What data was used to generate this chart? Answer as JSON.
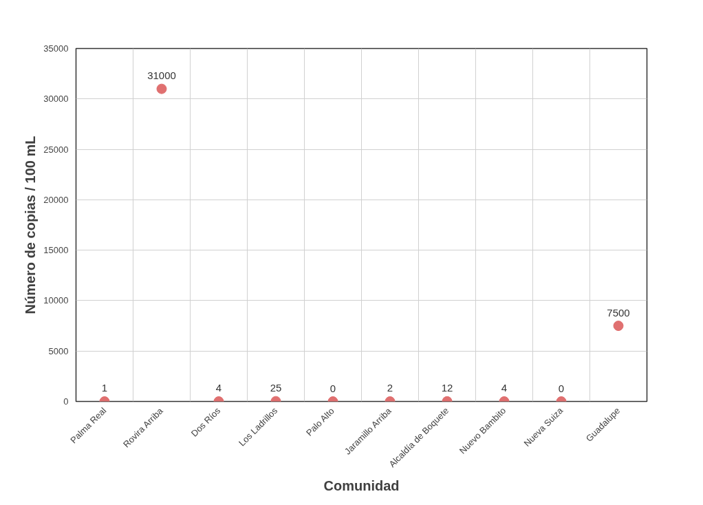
{
  "chart_data": {
    "type": "scatter",
    "xlabel": "Comunidad",
    "ylabel": "Número de copias / 100 mL",
    "categories": [
      "Palma Real",
      "Rovira Arriba",
      "Dos Ríos",
      "Los Ladrillos",
      "Palo Alto",
      "Jaramillo Arriba",
      "Alcaldía de Boquete",
      "Nuevo Bambito",
      "Nueva Suiza",
      "Guadalupe"
    ],
    "series": [
      {
        "color": "#e07070",
        "values": [
          1,
          31000,
          4,
          25,
          0,
          2,
          12,
          4,
          0,
          7500
        ]
      }
    ],
    "ylim": [
      0,
      35000
    ],
    "yticks": [
      0,
      5000,
      10000,
      15000,
      20000,
      25000,
      30000,
      35000
    ],
    "grid": true,
    "marker": "circle",
    "data_labels": true
  }
}
